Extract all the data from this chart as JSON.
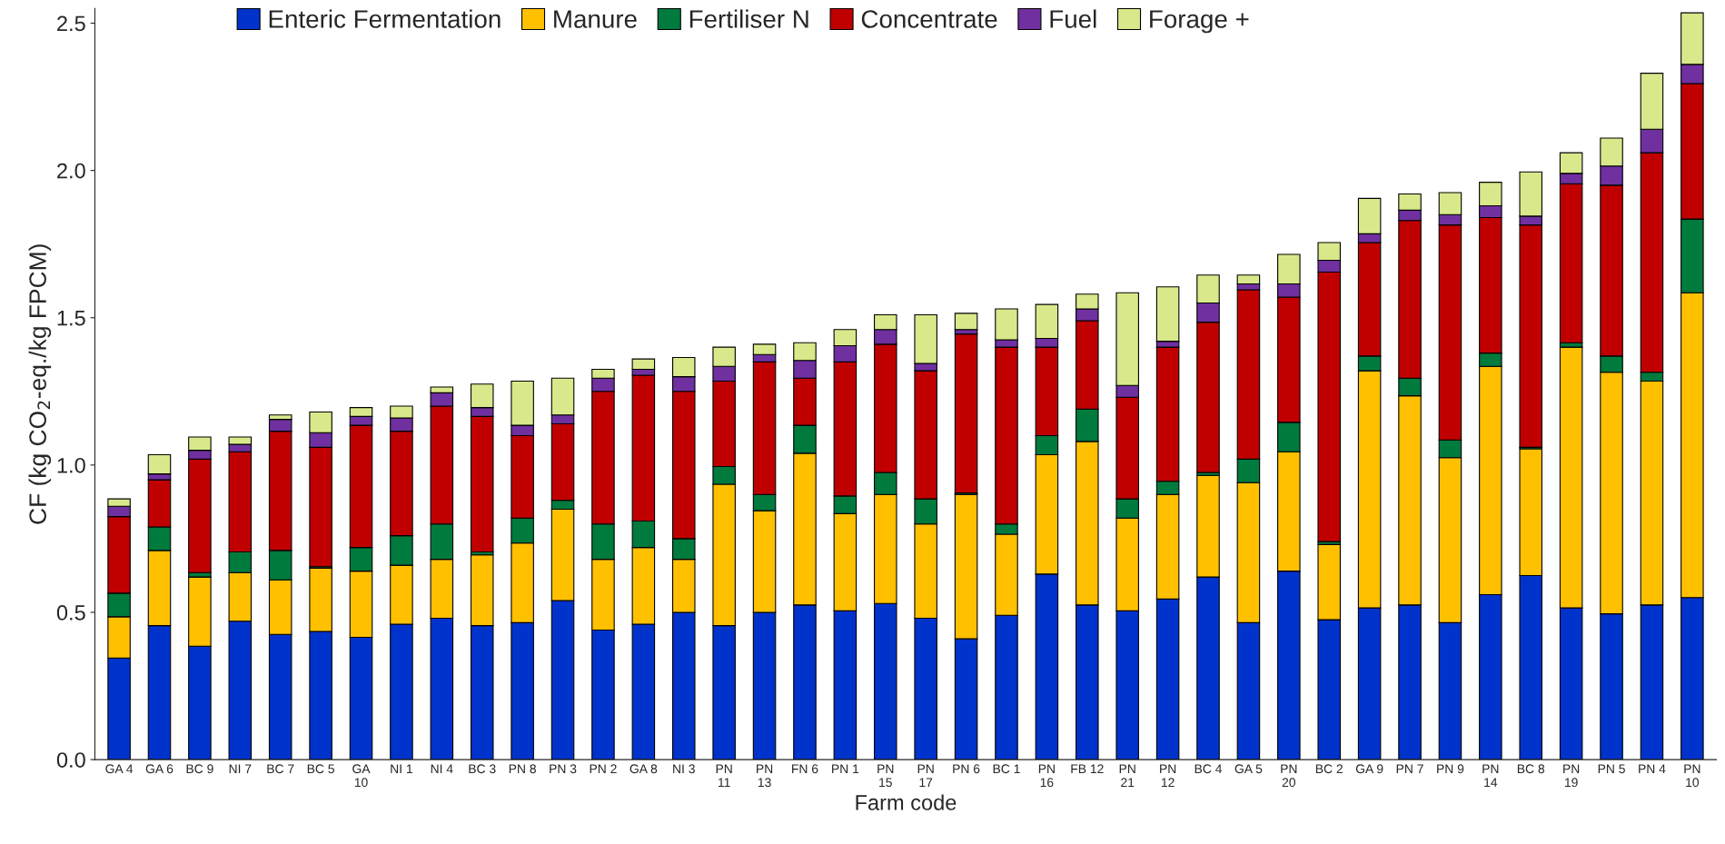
{
  "chart_data": {
    "type": "bar",
    "stacked": true,
    "xlabel": "Farm code",
    "ylabel": "CF (kg CO$_{2}$-eq./kg FPCM)",
    "categories": [
      "GA 4",
      "GA 6",
      "BC 9",
      "NI 7",
      "BC 7",
      "BC 5",
      "GA\n10",
      "NI 1",
      "NI 4",
      "BC 3",
      "PN 8",
      "PN 3",
      "PN 2",
      "GA 8",
      "NI 3",
      "PN\n11",
      "PN\n13",
      "FN 6",
      "PN 1",
      "PN\n15",
      "PN\n17",
      "PN 6",
      "BC 1",
      "PN\n16",
      "FB 12",
      "PN\n21",
      "PN\n12",
      "BC 4",
      "GA 5",
      "PN\n20",
      "BC 2",
      "GA 9",
      "PN 7",
      "PN 9",
      "PN\n14",
      "BC 8",
      "PN\n19",
      "PN 5",
      "PN 4",
      "PN\n10"
    ],
    "series": [
      {
        "name": "Enteric Fermentation",
        "color": "#0033cc",
        "values": [
          0.345,
          0.455,
          0.385,
          0.47,
          0.425,
          0.435,
          0.415,
          0.46,
          0.48,
          0.455,
          0.465,
          0.54,
          0.44,
          0.46,
          0.5,
          0.455,
          0.5,
          0.525,
          0.505,
          0.53,
          0.48,
          0.41,
          0.49,
          0.63,
          0.525,
          0.505,
          0.545,
          0.62,
          0.465,
          0.64,
          0.475,
          0.515,
          0.525,
          0.465,
          0.56,
          0.625,
          0.515,
          0.495,
          0.525,
          0.55
        ]
      },
      {
        "name": "Manure",
        "color": "#ffc000",
        "values": [
          0.14,
          0.255,
          0.235,
          0.165,
          0.185,
          0.215,
          0.225,
          0.2,
          0.2,
          0.24,
          0.27,
          0.31,
          0.24,
          0.26,
          0.18,
          0.48,
          0.345,
          0.515,
          0.33,
          0.37,
          0.32,
          0.49,
          0.275,
          0.405,
          0.555,
          0.315,
          0.355,
          0.345,
          0.475,
          0.405,
          0.255,
          0.805,
          0.71,
          0.56,
          0.775,
          0.43,
          0.885,
          0.82,
          0.76,
          1.035
        ]
      },
      {
        "name": "Fertiliser N",
        "color": "#007a3d",
        "values": [
          0.08,
          0.08,
          0.015,
          0.07,
          0.1,
          0.005,
          0.08,
          0.1,
          0.12,
          0.01,
          0.085,
          0.03,
          0.12,
          0.09,
          0.07,
          0.06,
          0.055,
          0.095,
          0.06,
          0.075,
          0.085,
          0.005,
          0.035,
          0.065,
          0.11,
          0.065,
          0.045,
          0.01,
          0.08,
          0.1,
          0.01,
          0.05,
          0.06,
          0.06,
          0.045,
          0.005,
          0.015,
          0.055,
          0.03,
          0.25
        ]
      },
      {
        "name": "Concentrate",
        "color": "#c00000",
        "values": [
          0.26,
          0.16,
          0.385,
          0.34,
          0.405,
          0.405,
          0.415,
          0.355,
          0.4,
          0.46,
          0.28,
          0.26,
          0.45,
          0.495,
          0.5,
          0.29,
          0.45,
          0.16,
          0.455,
          0.435,
          0.435,
          0.54,
          0.6,
          0.3,
          0.3,
          0.345,
          0.455,
          0.51,
          0.575,
          0.425,
          0.915,
          0.385,
          0.535,
          0.73,
          0.46,
          0.755,
          0.54,
          0.58,
          0.745,
          0.46
        ]
      },
      {
        "name": "Fuel",
        "color": "#7030a0",
        "values": [
          0.035,
          0.02,
          0.03,
          0.025,
          0.04,
          0.05,
          0.03,
          0.045,
          0.045,
          0.03,
          0.035,
          0.03,
          0.045,
          0.02,
          0.05,
          0.05,
          0.025,
          0.06,
          0.055,
          0.05,
          0.025,
          0.015,
          0.025,
          0.03,
          0.04,
          0.04,
          0.02,
          0.065,
          0.02,
          0.045,
          0.04,
          0.03,
          0.035,
          0.035,
          0.04,
          0.03,
          0.035,
          0.065,
          0.08,
          0.065
        ]
      },
      {
        "name": "Forage +",
        "color": "#d9e88a",
        "values": [
          0.025,
          0.065,
          0.045,
          0.025,
          0.015,
          0.07,
          0.03,
          0.04,
          0.02,
          0.08,
          0.15,
          0.125,
          0.03,
          0.035,
          0.065,
          0.065,
          0.035,
          0.06,
          0.055,
          0.05,
          0.165,
          0.055,
          0.105,
          0.115,
          0.05,
          0.315,
          0.185,
          0.095,
          0.03,
          0.1,
          0.06,
          0.12,
          0.055,
          0.075,
          0.08,
          0.15,
          0.07,
          0.095,
          0.19,
          0.175
        ]
      }
    ],
    "ylim": [
      0,
      2.55
    ],
    "yticks": [
      {
        "value": 0,
        "label": "0.0"
      },
      {
        "value": 0.5,
        "label": "0.5"
      },
      {
        "value": 1,
        "label": "1.0"
      },
      {
        "value": 1.5,
        "label": "1.5"
      },
      {
        "value": 2,
        "label": "2.0"
      },
      {
        "value": 2.5,
        "label": "2.5"
      }
    ],
    "grid": false,
    "legend": "top"
  }
}
